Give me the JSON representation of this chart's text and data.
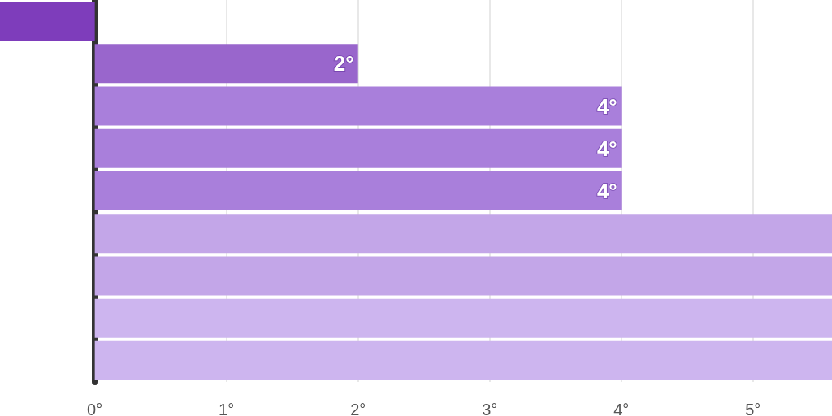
{
  "chart_data": {
    "type": "bar",
    "orientation": "horizontal",
    "categories": [
      null,
      null,
      null,
      null,
      null,
      null,
      null,
      null,
      null
    ],
    "values": [
      -0.72,
      2,
      4,
      4,
      4,
      5.6,
      5.6,
      5.6,
      5.6
    ],
    "colors": [
      "#7e3dbb",
      "#9966cc",
      "#a97fdb",
      "#a97fdb",
      "#a97fdb",
      "#c3a6e8",
      "#c3a6e8",
      "#cdb5ef",
      "#cdb5ef"
    ],
    "value_labels": [
      null,
      "2°",
      "4°",
      "4°",
      "4°",
      null,
      null,
      null,
      null
    ],
    "xlim": [
      -0.72,
      5.6
    ],
    "xticks": [
      {
        "value": 0,
        "label": "0°"
      },
      {
        "value": 1,
        "label": "1°"
      },
      {
        "value": 2,
        "label": "2°"
      },
      {
        "value": 3,
        "label": "3°"
      },
      {
        "value": 4,
        "label": "4°"
      },
      {
        "value": 5,
        "label": "5°"
      }
    ],
    "grid": "x"
  }
}
